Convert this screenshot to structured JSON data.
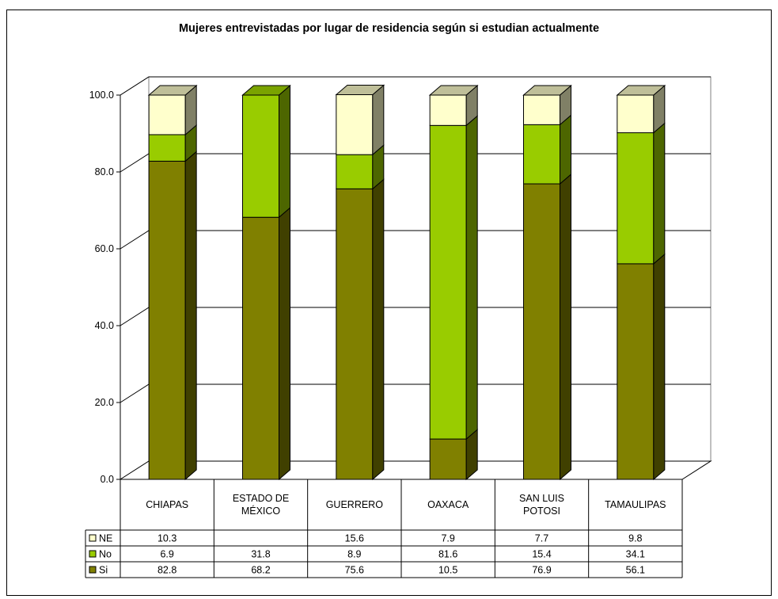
{
  "chart_data": {
    "type": "bar",
    "stacked": true,
    "style": "3d-column with data table",
    "title": "Mujeres entrevistadas por lugar de residencia según si estudian actualmente",
    "categories": [
      [
        "CHIAPAS"
      ],
      [
        "ESTADO DE",
        "MÉXICO"
      ],
      [
        "GUERRERO"
      ],
      [
        "OAXACA"
      ],
      [
        "SAN LUIS",
        "POTOSI"
      ],
      [
        "TAMAULIPAS"
      ]
    ],
    "series": [
      {
        "name": "Si",
        "values": [
          82.8,
          68.2,
          75.6,
          10.5,
          76.9,
          56.1
        ],
        "color": "#808000"
      },
      {
        "name": "No",
        "values": [
          6.9,
          31.8,
          8.9,
          81.6,
          15.4,
          34.1
        ],
        "color": "#99CC00"
      },
      {
        "name": "NE",
        "values": [
          10.3,
          null,
          15.6,
          7.9,
          7.7,
          9.8
        ],
        "color": "#FFFFCC"
      }
    ],
    "table_labels": {
      "NE": [
        "10.3",
        "",
        "15.6",
        "7.9",
        "7.7",
        "9.8"
      ],
      "No": [
        "6.9",
        "31.8",
        "8.9",
        "81.6",
        "15.4",
        "34.1"
      ],
      "Si": [
        "82.8",
        "68.2",
        "75.6",
        "10.5",
        "76.9",
        "56.1"
      ]
    },
    "yticks": [
      "0.0",
      "20.0",
      "40.0",
      "60.0",
      "80.0",
      "100.0"
    ],
    "ylim": [
      0,
      100
    ],
    "grid": true,
    "legend": "in data table (left)"
  }
}
